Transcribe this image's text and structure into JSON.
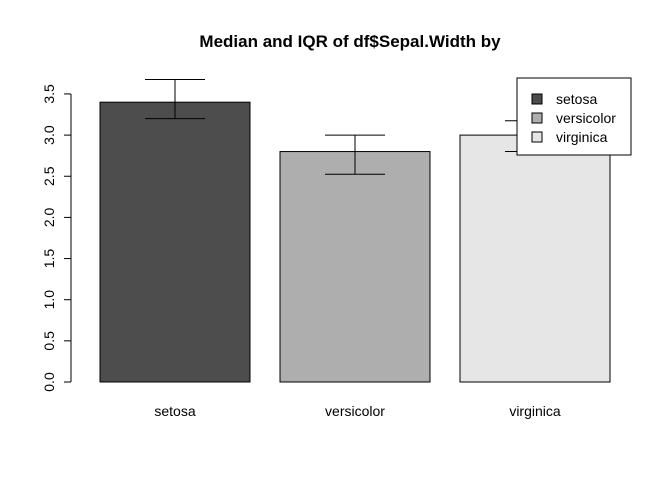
{
  "chart_data": {
    "type": "bar",
    "title": "Median and IQR of df$Sepal.Width by",
    "xlabel": "",
    "ylabel": "",
    "ylim": [
      0,
      3.5
    ],
    "yticks": [
      "0.0",
      "0.5",
      "1.0",
      "1.5",
      "2.0",
      "2.5",
      "3.0",
      "3.5"
    ],
    "categories": [
      "setosa",
      "versicolor",
      "virginica"
    ],
    "values": [
      3.4,
      2.8,
      3.0
    ],
    "iqr": [
      {
        "low": 3.2,
        "high": 3.675
      },
      {
        "low": 2.525,
        "high": 3.0
      },
      {
        "low": 2.8,
        "high": 3.175
      }
    ],
    "colors": [
      "#4d4d4d",
      "#aeaeae",
      "#e6e6e6"
    ],
    "legend": {
      "position": "top-right",
      "entries": [
        "setosa",
        "versicolor",
        "virginica"
      ]
    },
    "grid": false
  }
}
